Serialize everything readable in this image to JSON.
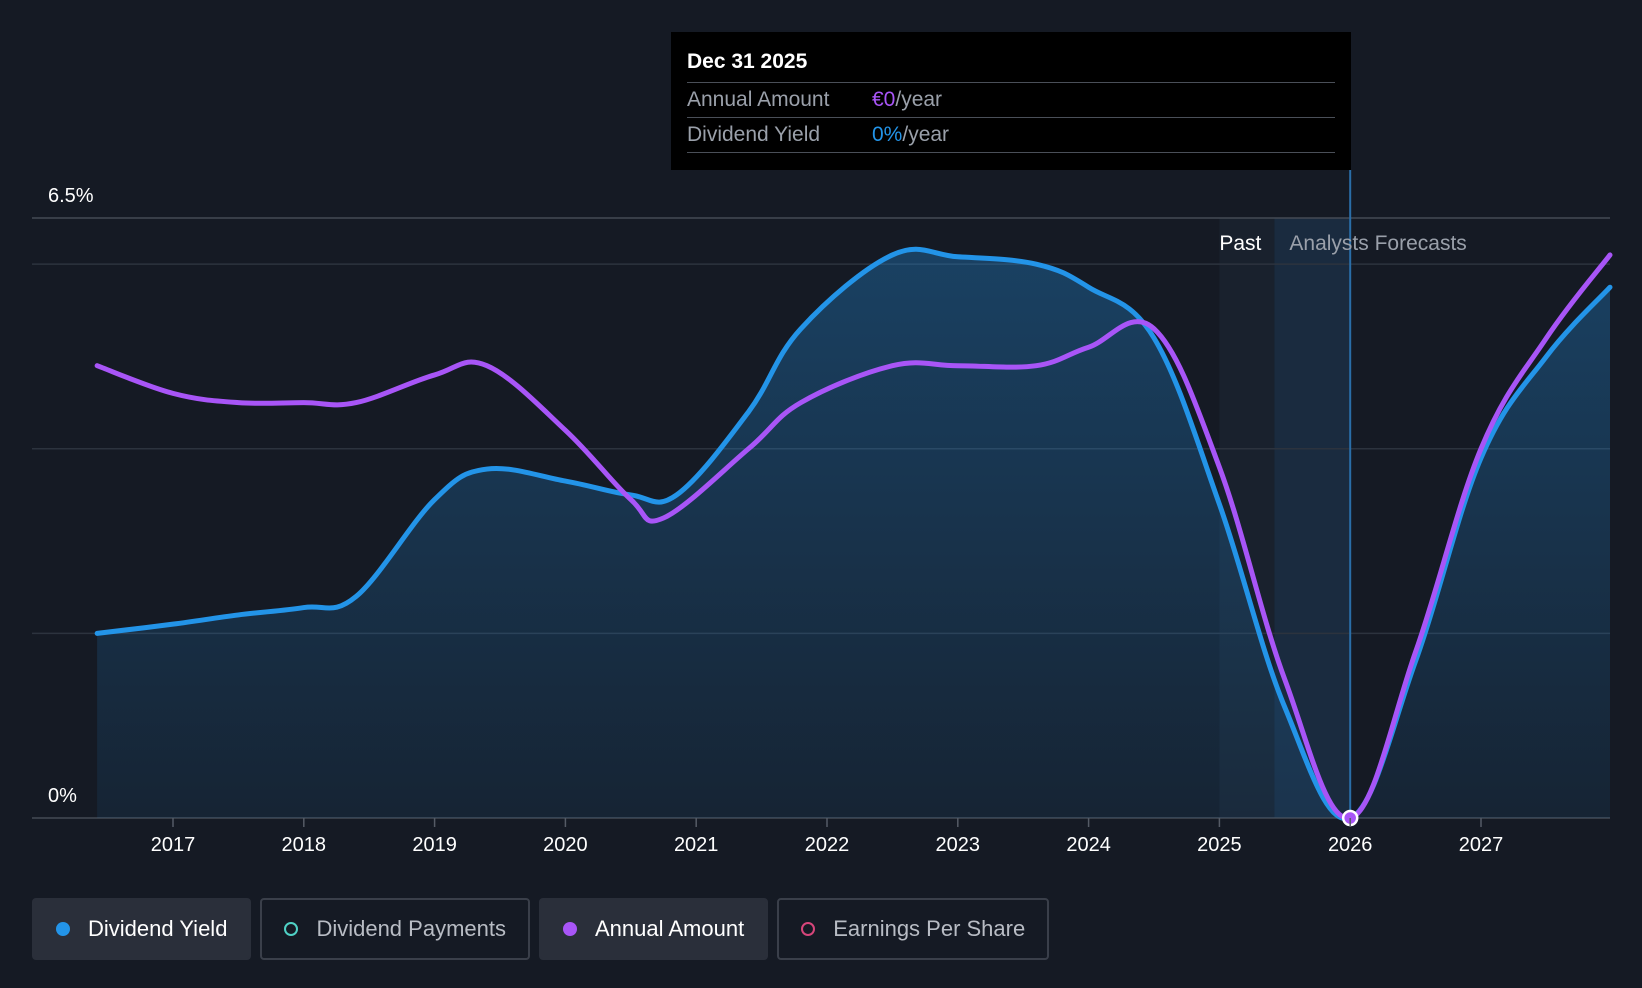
{
  "tooltip": {
    "date": "Dec 31 2025",
    "rows": [
      {
        "name": "Annual Amount",
        "value": "€0",
        "unit": "/year",
        "color": "#a855f7"
      },
      {
        "name": "Dividend Yield",
        "value": "0%",
        "unit": "/year",
        "color": "#2394e8"
      }
    ]
  },
  "regions": {
    "past_label": "Past",
    "forecast_label": "Analysts Forecasts"
  },
  "legend": [
    {
      "label": "Dividend Yield",
      "color": "#2394e8",
      "active": true
    },
    {
      "label": "Dividend Payments",
      "color": "#4fd1c5",
      "active": false
    },
    {
      "label": "Annual Amount",
      "color": "#a855f7",
      "active": true
    },
    {
      "label": "Earnings Per Share",
      "color": "#d6457a",
      "active": false
    }
  ],
  "colors": {
    "background": "#151a24",
    "dividend_yield": "#2394e8",
    "annual_amount": "#a855f7",
    "grid": "#2f3540"
  },
  "chart_data": {
    "type": "line",
    "title": "",
    "xlabel": "",
    "ylabel": "",
    "x_ticks": [
      "2017",
      "2018",
      "2019",
      "2020",
      "2021",
      "2022",
      "2023",
      "2024",
      "2025",
      "2026",
      "2027"
    ],
    "y_tick_labels": [
      "0%",
      "6.5%"
    ],
    "ylim": [
      0,
      6.5
    ],
    "xlim": [
      2016.0,
      2028.0
    ],
    "grid": true,
    "past_forecast_boundary": 2025.0,
    "hover_x": 2026.0,
    "series": [
      {
        "name": "Dividend Yield",
        "points": [
          [
            2016.42,
            2.0
          ],
          [
            2017.0,
            2.1
          ],
          [
            2017.5,
            2.2
          ],
          [
            2018.0,
            2.28
          ],
          [
            2018.4,
            2.4
          ],
          [
            2019.0,
            3.45
          ],
          [
            2019.4,
            3.78
          ],
          [
            2020.0,
            3.65
          ],
          [
            2020.5,
            3.5
          ],
          [
            2020.85,
            3.5
          ],
          [
            2021.4,
            4.4
          ],
          [
            2021.8,
            5.3
          ],
          [
            2022.5,
            6.1
          ],
          [
            2023.0,
            6.08
          ],
          [
            2023.6,
            6.0
          ],
          [
            2024.0,
            5.75
          ],
          [
            2024.5,
            5.2
          ],
          [
            2025.0,
            3.4
          ],
          [
            2025.5,
            1.2
          ],
          [
            2026.0,
            0.0
          ],
          [
            2026.5,
            1.7
          ],
          [
            2027.0,
            3.9
          ],
          [
            2027.5,
            5.0
          ],
          [
            2028.0,
            5.75
          ]
        ]
      },
      {
        "name": "Annual Amount",
        "points": [
          [
            2016.42,
            4.9
          ],
          [
            2017.0,
            4.6
          ],
          [
            2017.5,
            4.5
          ],
          [
            2018.0,
            4.5
          ],
          [
            2018.4,
            4.5
          ],
          [
            2019.0,
            4.8
          ],
          [
            2019.4,
            4.9
          ],
          [
            2020.0,
            4.2
          ],
          [
            2020.5,
            3.45
          ],
          [
            2020.75,
            3.25
          ],
          [
            2021.4,
            4.0
          ],
          [
            2021.8,
            4.5
          ],
          [
            2022.5,
            4.9
          ],
          [
            2023.0,
            4.9
          ],
          [
            2023.6,
            4.9
          ],
          [
            2024.0,
            5.1
          ],
          [
            2024.5,
            5.3
          ],
          [
            2025.0,
            3.8
          ],
          [
            2025.5,
            1.5
          ],
          [
            2026.0,
            0.0
          ],
          [
            2026.5,
            1.8
          ],
          [
            2027.0,
            4.0
          ],
          [
            2027.5,
            5.2
          ],
          [
            2028.0,
            6.1
          ]
        ]
      }
    ]
  }
}
